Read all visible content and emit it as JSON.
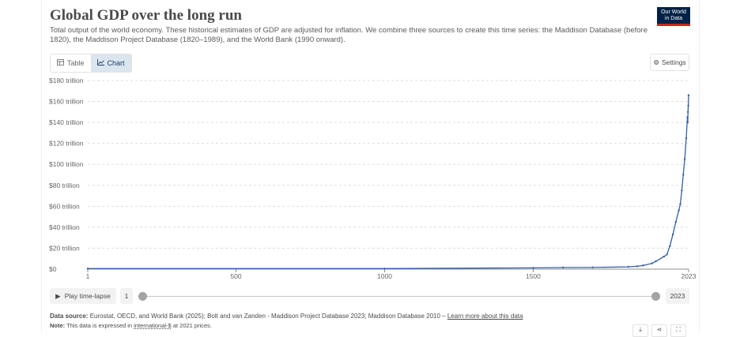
{
  "header": {
    "title": "Global GDP over the long run",
    "subtitle": "Total output of the world economy. These historical estimates of GDP are adjusted for inflation. We combine three sources to create this time series: the Maddison Database (before 1820), the Maddison Project Database (1820–1989), and the World Bank (1990 onward).",
    "logo_line1": "Our World",
    "logo_line2": "in Data"
  },
  "tabs": [
    {
      "label": "Table",
      "icon": "table-icon",
      "active": false
    },
    {
      "label": "Chart",
      "icon": "line-chart-icon",
      "active": true
    }
  ],
  "settings_label": "Settings",
  "chart_data": {
    "type": "line",
    "title": "Global GDP over the long run",
    "xlim": [
      1,
      2023
    ],
    "ylim": [
      0,
      180
    ],
    "x_ticks": [
      "1",
      "500",
      "1000",
      "1500",
      "2023"
    ],
    "y_ticks": [
      "$0",
      "$20 trillion",
      "$40 trillion",
      "$60 trillion",
      "$80 trillion",
      "$100 trillion",
      "$120 trillion",
      "$140 trillion",
      "$160 trillion",
      "$180 trillion"
    ],
    "grid": "horizontal",
    "line_color": "#3360a9",
    "series": [
      {
        "points": [
          [
            1,
            0.5
          ],
          [
            1000,
            0.5
          ],
          [
            1500,
            1.2
          ],
          [
            1600,
            1.5
          ],
          [
            1700,
            1.6
          ],
          [
            1820,
            2.2
          ],
          [
            1850,
            2.7
          ],
          [
            1870,
            3.5
          ],
          [
            1900,
            5.5
          ],
          [
            1913,
            7.5
          ],
          [
            1940,
            12
          ],
          [
            1950,
            14
          ],
          [
            1960,
            22
          ],
          [
            1970,
            33
          ],
          [
            1980,
            45
          ],
          [
            1990,
            56
          ],
          [
            1995,
            62
          ],
          [
            2000,
            75
          ],
          [
            2005,
            90
          ],
          [
            2010,
            105
          ],
          [
            2015,
            125
          ],
          [
            2019,
            145
          ],
          [
            2020,
            140
          ],
          [
            2021,
            150
          ],
          [
            2022,
            156
          ],
          [
            2023,
            166
          ]
        ]
      }
    ]
  },
  "timeline": {
    "play_label": "Play time-lapse",
    "start_year": "1",
    "end_year": "2023"
  },
  "footer": {
    "source_prefix": "Data source:",
    "source_text": "Eurostat, OECD, and World Bank (2025); Bolt and van Zanden - Maddison Project Database 2023; Maddison Database 2010 –",
    "source_link": "Learn more about this data",
    "note_prefix": "Note:",
    "note_text_a": "This data is expressed in",
    "note_link": "international-$",
    "note_text_b": "at 2021 prices."
  },
  "actions": [
    {
      "icon": "download-icon",
      "glyph": "⤓"
    },
    {
      "icon": "share-icon",
      "glyph": "⋖"
    },
    {
      "icon": "fullscreen-icon",
      "glyph": "⛶"
    }
  ]
}
